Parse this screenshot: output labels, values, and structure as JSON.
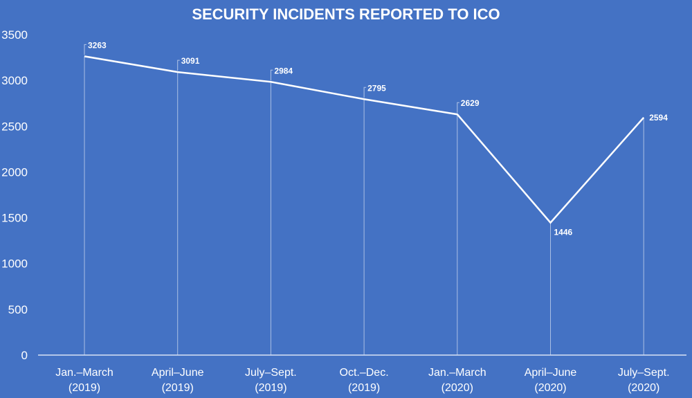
{
  "chart_data": {
    "type": "line",
    "title": "SECURITY INCIDENTS REPORTED TO ICO",
    "xlabel": "",
    "ylabel": "",
    "ylim": [
      0,
      3500
    ],
    "yticks": [
      0,
      500,
      1000,
      1500,
      2000,
      2500,
      3000,
      3500
    ],
    "grid": false,
    "categories": [
      [
        "Jan.–March",
        "(2019)"
      ],
      [
        "April–June",
        "(2019)"
      ],
      [
        "July–Sept.",
        "(2019)"
      ],
      [
        "Oct.–Dec.",
        "(2019)"
      ],
      [
        "Jan.–March",
        "(2020)"
      ],
      [
        "April–June",
        "(2020)"
      ],
      [
        "July–Sept.",
        "(2020)"
      ]
    ],
    "series": [
      {
        "name": "Security incidents",
        "values": [
          3263,
          3091,
          2984,
          2795,
          2629,
          1446,
          2594
        ]
      }
    ],
    "colors": {
      "background": "#4472c4",
      "line": "#ffffff"
    }
  }
}
